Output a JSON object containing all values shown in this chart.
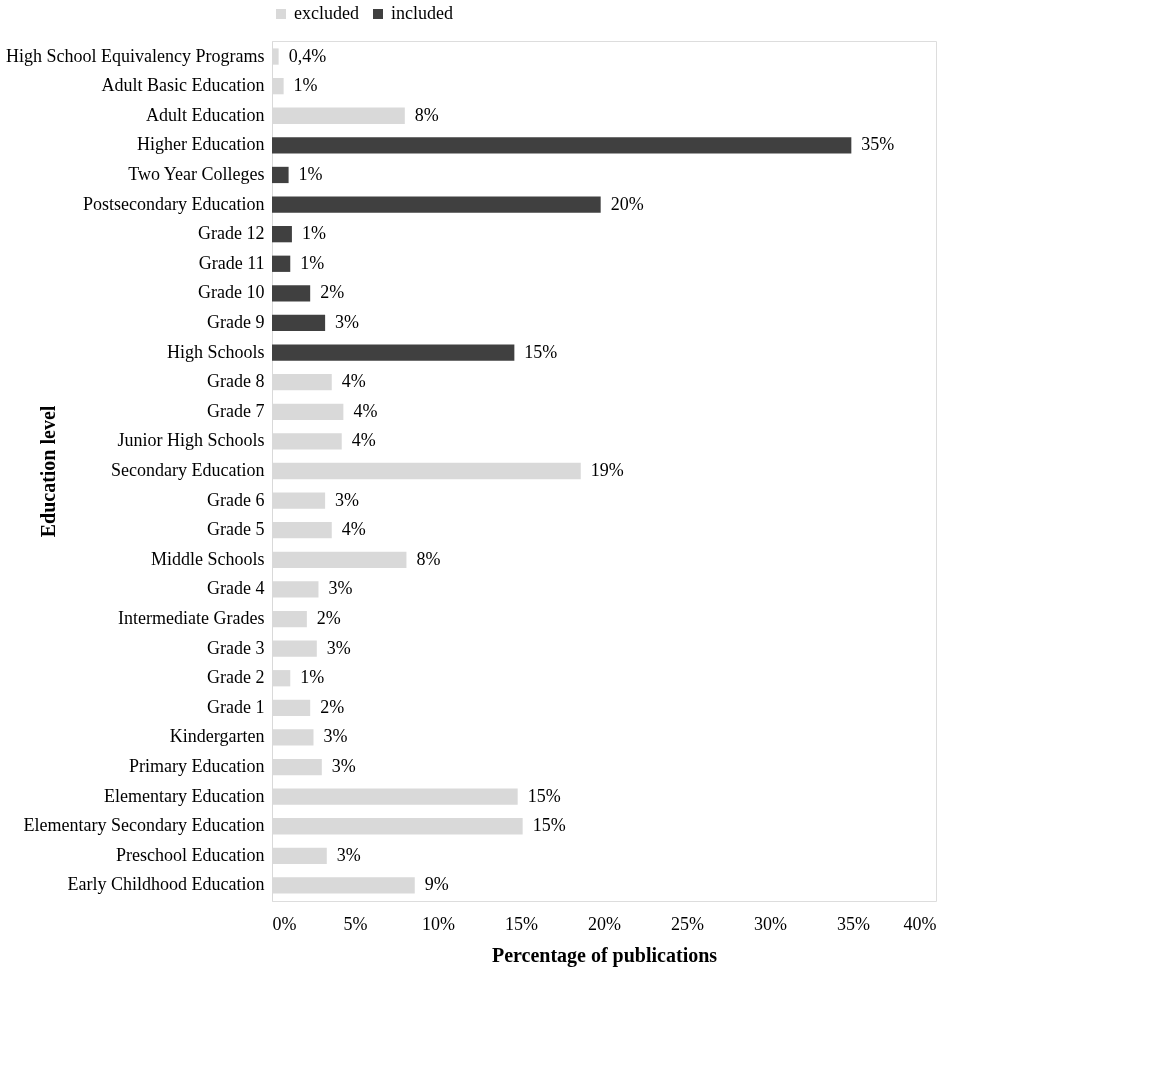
{
  "chart_data": {
    "type": "bar",
    "orientation": "horizontal",
    "xlabel": "Percentage of publications",
    "ylabel": "Education level",
    "categories": [
      "High School Equivalency Programs",
      "Adult Basic Education",
      "Adult Education",
      "Higher Education",
      "Two Year Colleges",
      "Postsecondary Education",
      "Grade 12",
      "Grade 11",
      "Grade 10",
      "Grade 9",
      "High Schools",
      "Grade 8",
      "Grade 7",
      "Junior High Schools",
      "Secondary Education",
      "Grade 6",
      "Grade 5",
      "Middle Schools",
      "Grade 4",
      "Intermediate Grades",
      "Grade 3",
      "Grade 2",
      "Grade 1",
      "Kindergarten",
      "Primary Education",
      "Elementary Education",
      "Elementary Secondary Education",
      "Preschool Education",
      "Early Childhood Education"
    ],
    "series": [
      {
        "name": "excluded",
        "color": "#d9d9d9",
        "values": [
          0.4,
          0.7,
          8.0,
          null,
          null,
          null,
          null,
          null,
          null,
          null,
          null,
          3.6,
          4.3,
          4.2,
          18.6,
          3.2,
          3.6,
          8.1,
          2.8,
          2.1,
          2.7,
          1.1,
          2.3,
          2.5,
          3.0,
          14.8,
          15.1,
          3.3,
          8.6
        ],
        "value_labels": [
          "0,4%",
          "1%",
          "8%",
          null,
          null,
          null,
          null,
          null,
          null,
          null,
          null,
          "4%",
          "4%",
          "4%",
          "19%",
          "3%",
          "4%",
          "8%",
          "3%",
          "2%",
          "3%",
          "1%",
          "2%",
          "3%",
          "3%",
          "15%",
          "15%",
          "3%",
          "9%"
        ]
      },
      {
        "name": "included",
        "color": "#404040",
        "values": [
          null,
          null,
          null,
          34.9,
          1.0,
          19.8,
          1.2,
          1.1,
          2.3,
          3.2,
          14.6,
          null,
          null,
          null,
          null,
          null,
          null,
          null,
          null,
          null,
          null,
          null,
          null,
          null,
          null,
          null,
          null,
          null,
          null
        ],
        "value_labels": [
          null,
          null,
          null,
          "35%",
          "1%",
          "20%",
          "1%",
          "1%",
          "2%",
          "3%",
          "15%",
          null,
          null,
          null,
          null,
          null,
          null,
          null,
          null,
          null,
          null,
          null,
          null,
          null,
          null,
          null,
          null,
          null,
          null
        ]
      }
    ],
    "xlim": [
      0,
      40
    ],
    "xticks": [
      {
        "value": 0,
        "label": "0%"
      },
      {
        "value": 5,
        "label": "5%"
      },
      {
        "value": 10,
        "label": "10%"
      },
      {
        "value": 15,
        "label": "15%"
      },
      {
        "value": 20,
        "label": "20%"
      },
      {
        "value": 25,
        "label": "25%"
      },
      {
        "value": 30,
        "label": "30%"
      },
      {
        "value": 35,
        "label": "35%"
      },
      {
        "value": 40,
        "label": "40%"
      }
    ],
    "grid": false,
    "legend": "top"
  }
}
